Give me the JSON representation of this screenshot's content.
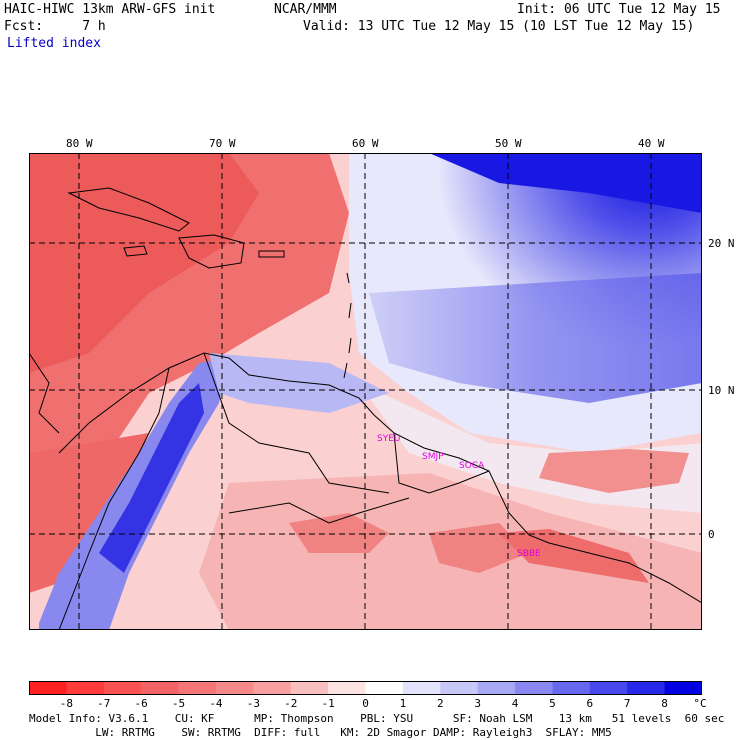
{
  "header": {
    "title_left": "HAIC-HIWC 13km ARW-GFS init",
    "title_mid": "NCAR/MMM",
    "init": "Init: 06 UTC Tue 12 May 15",
    "fcst": "Fcst:     7 h",
    "valid": "Valid: 13 UTC Tue 12 May 15 (10 LST Tue 12 May 15)",
    "field": "Lifted index"
  },
  "lon_labels": [
    "80 W",
    "70 W",
    "60 W",
    "50 W",
    "40 W"
  ],
  "lat_labels": [
    "20 N",
    "10 N",
    "0"
  ],
  "stations": [
    "SYEU",
    "SMJP",
    "SOCA",
    "SBBE"
  ],
  "colorbar": {
    "labels": [
      "-8",
      "-7",
      "-6",
      "-5",
      "-4",
      "-3",
      "-2",
      "-1",
      "0",
      "1",
      "2",
      "3",
      "4",
      "5",
      "6",
      "7",
      "8"
    ],
    "unit": "°C",
    "colors": [
      "#ff2020",
      "#ff3c3c",
      "#f85252",
      "#f46464",
      "#f47676",
      "#f68a8a",
      "#f8a0a0",
      "#fac0c0",
      "#fde4e4",
      "#ffffff",
      "#e4e4fc",
      "#c8c8f8",
      "#a8a8f4",
      "#8888f0",
      "#6868ee",
      "#4848ec",
      "#2828e8",
      "#0000e0"
    ]
  },
  "footer": {
    "line1": "Model Info: V3.6.1    CU: KF      MP: Thompson    PBL: YSU      SF: Noah LSM    13 km   51 levels  60 sec",
    "line2": "          LW: RRTMG    SW: RRTMG  DIFF: full   KM: 2D Smagor DAMP: Rayleigh3  SFLAY: MM5"
  }
}
